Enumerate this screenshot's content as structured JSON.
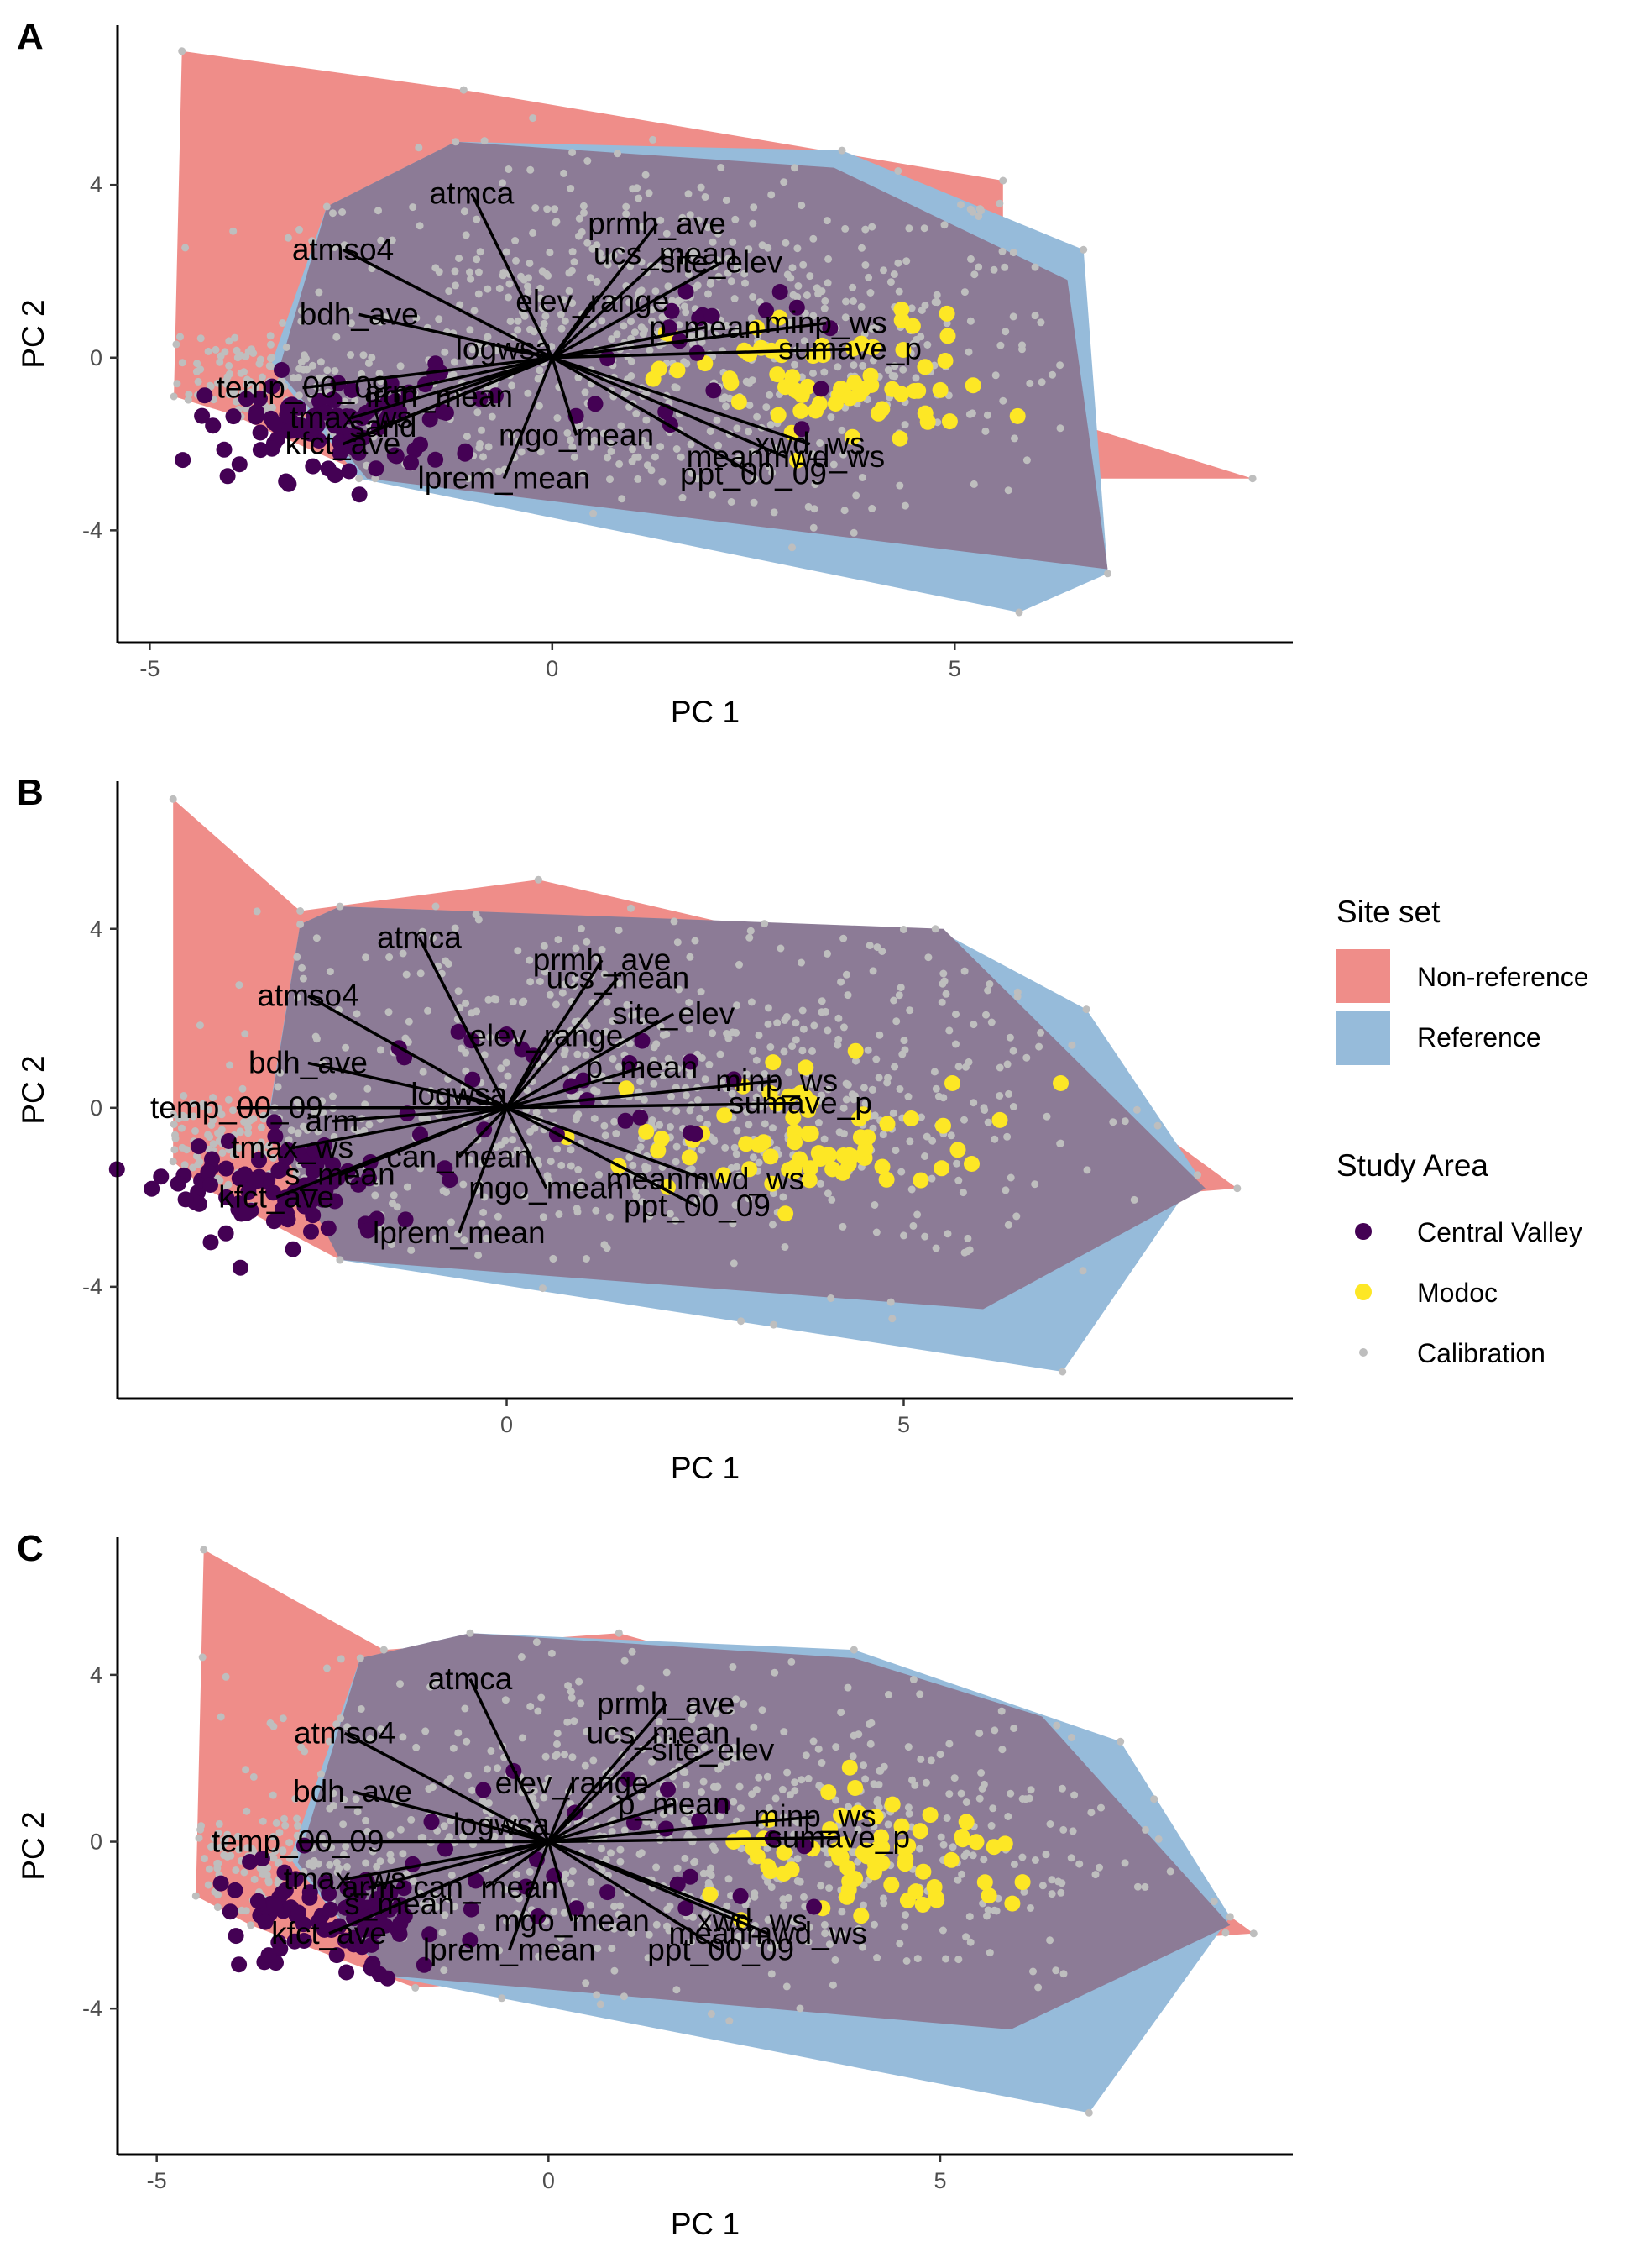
{
  "colors": {
    "nonref": "#ef8d89",
    "ref": "#96bbda",
    "overlap": "#8c7b96",
    "central": "#440154",
    "modoc": "#fde725",
    "calib": "#bebebe",
    "arrow": "#000000"
  },
  "legend": {
    "site_title": "Site set",
    "site_items": [
      {
        "label": "Non-reference",
        "color": "#ef8d89"
      },
      {
        "label": "Reference",
        "color": "#96bbda"
      }
    ],
    "study_title": "Study Area",
    "study_items": [
      {
        "label": "Central Valley",
        "color": "#440154"
      },
      {
        "label": "Modoc",
        "color": "#fde725"
      },
      {
        "label": "Calibration",
        "color": "#bebebe"
      }
    ]
  },
  "chart_data": [
    {
      "type": "scatter",
      "panel": "A",
      "xlabel": "PC 1",
      "ylabel": "PC 2",
      "xlim": [
        -5.4,
        9.2
      ],
      "ylim": [
        -6.6,
        7.7
      ],
      "xticks": [
        -5,
        0,
        5
      ],
      "yticks": [
        -4,
        0,
        4
      ],
      "hull_nonref": [
        [
          -4.6,
          7.1
        ],
        [
          -4.7,
          -0.9
        ],
        [
          -4.0,
          -1.3
        ],
        [
          -2.2,
          -2.8
        ],
        [
          8.7,
          -2.8
        ],
        [
          5.6,
          -1.0
        ],
        [
          5.6,
          4.1
        ],
        [
          -1.1,
          6.2
        ]
      ],
      "hull_ref": [
        [
          -2.8,
          3.5
        ],
        [
          -1.2,
          5.0
        ],
        [
          3.6,
          4.8
        ],
        [
          6.6,
          2.5
        ],
        [
          6.9,
          -5.0
        ],
        [
          5.8,
          -5.9
        ],
        [
          -2.4,
          -2.8
        ],
        [
          -3.5,
          -0.2
        ]
      ],
      "hull_overlap": [
        [
          -2.8,
          3.5
        ],
        [
          -1.2,
          5.0
        ],
        [
          3.5,
          4.4
        ],
        [
          6.4,
          1.8
        ],
        [
          6.9,
          -4.9
        ],
        [
          -2.3,
          -2.8
        ],
        [
          -3.4,
          -0.3
        ]
      ],
      "central_valley": {
        "cx": -2.8,
        "cy": -1.6,
        "sx": 0.8,
        "sy": 0.6,
        "n": 90
      },
      "modoc": {
        "cx": 3.5,
        "cy": -0.6,
        "sx": 1.0,
        "sy": 1.0,
        "n": 70
      },
      "calibration": {
        "cx": 1.4,
        "cy": 0.3,
        "sx": 2.6,
        "sy": 2.1,
        "n": 650
      },
      "loadings": [
        {
          "label": "atmca",
          "x": -1.0,
          "y": 3.8
        },
        {
          "label": "prmh_ave",
          "x": 1.3,
          "y": 3.1
        },
        {
          "label": "atmso4",
          "x": -2.6,
          "y": 2.5
        },
        {
          "label": "ucs_mean",
          "x": 1.4,
          "y": 2.4
        },
        {
          "label": "site_elev",
          "x": 2.1,
          "y": 2.2
        },
        {
          "label": "elev_range",
          "x": 0.5,
          "y": 1.3
        },
        {
          "label": "bdh_ave",
          "x": -2.4,
          "y": 1.0
        },
        {
          "label": "minp_ws",
          "x": 3.4,
          "y": 0.8
        },
        {
          "label": "p_mean",
          "x": 1.9,
          "y": 0.7
        },
        {
          "label": "logwsa",
          "x": -0.6,
          "y": 0.2
        },
        {
          "label": "sumave_p",
          "x": 3.7,
          "y": 0.2
        },
        {
          "label": "temp_00_09",
          "x": -3.1,
          "y": -0.7
        },
        {
          "label": "arm",
          "x": -2.0,
          "y": -0.8
        },
        {
          "label": "iron_mean",
          "x": -1.4,
          "y": -0.9
        },
        {
          "label": "tmax_ws",
          "x": -2.5,
          "y": -1.4
        },
        {
          "label": "sand",
          "x": -2.1,
          "y": -1.6
        },
        {
          "label": "kfct_ave",
          "x": -2.6,
          "y": -2.0
        },
        {
          "label": "mgo_mean",
          "x": 0.3,
          "y": -1.8
        },
        {
          "label": "xwd_ws",
          "x": 3.2,
          "y": -2.0
        },
        {
          "label": "meanmwd_ws",
          "x": 2.9,
          "y": -2.3
        },
        {
          "label": "ppt_00_09",
          "x": 2.5,
          "y": -2.7
        },
        {
          "label": "lprem_mean",
          "x": -0.6,
          "y": -2.8
        }
      ]
    },
    {
      "type": "scatter",
      "panel": "B",
      "xlabel": "PC 1",
      "ylabel": "PC 2",
      "xlim": [
        -4.9,
        9.9
      ],
      "ylim": [
        -6.5,
        7.3
      ],
      "xticks": [
        0,
        5
      ],
      "yticks": [
        -4,
        0,
        4
      ],
      "hull_nonref": [
        [
          -4.2,
          6.9
        ],
        [
          -4.2,
          -1.2
        ],
        [
          -3.8,
          -1.8
        ],
        [
          -2.1,
          -3.4
        ],
        [
          9.2,
          -1.8
        ],
        [
          5.5,
          3.0
        ],
        [
          0.4,
          5.1
        ],
        [
          -2.6,
          4.4
        ]
      ],
      "hull_ref": [
        [
          -2.6,
          4.1
        ],
        [
          -2.1,
          4.5
        ],
        [
          5.4,
          4.0
        ],
        [
          7.3,
          2.2
        ],
        [
          8.7,
          -1.5
        ],
        [
          7.0,
          -5.9
        ],
        [
          -2.1,
          -3.4
        ],
        [
          -3.0,
          -0.2
        ]
      ],
      "hull_overlap": [
        [
          -2.6,
          4.1
        ],
        [
          -2.1,
          4.5
        ],
        [
          5.5,
          4.0
        ],
        [
          8.8,
          -1.8
        ],
        [
          6.0,
          -4.5
        ],
        [
          -2.1,
          -3.4
        ],
        [
          -3.0,
          -0.3
        ]
      ],
      "central_valley": {
        "cx": -2.8,
        "cy": -1.9,
        "sx": 0.7,
        "sy": 0.6,
        "n": 90
      },
      "modoc": {
        "cx": 4.0,
        "cy": -0.7,
        "sx": 1.2,
        "sy": 0.9,
        "n": 70
      },
      "calibration": {
        "cx": 1.8,
        "cy": 0.2,
        "sx": 2.9,
        "sy": 1.9,
        "n": 650
      },
      "loadings": [
        {
          "label": "atmca",
          "x": -1.1,
          "y": 3.8
        },
        {
          "label": "prmh_ave",
          "x": 1.2,
          "y": 3.3
        },
        {
          "label": "atmso4",
          "x": -2.5,
          "y": 2.5
        },
        {
          "label": "ucs_mean",
          "x": 1.4,
          "y": 2.9
        },
        {
          "label": "site_elev",
          "x": 2.1,
          "y": 2.1
        },
        {
          "label": "elev_range",
          "x": 0.5,
          "y": 1.6
        },
        {
          "label": "bdh_ave",
          "x": -2.5,
          "y": 1.0
        },
        {
          "label": "p_mean",
          "x": 1.7,
          "y": 0.9
        },
        {
          "label": "minp_ws",
          "x": 3.4,
          "y": 0.6
        },
        {
          "label": "logwsa",
          "x": -0.6,
          "y": 0.3
        },
        {
          "label": "sumave_p",
          "x": 3.7,
          "y": 0.1
        },
        {
          "label": "temp_00_09",
          "x": -3.4,
          "y": 0.0
        },
        {
          "label": "arm",
          "x": -2.2,
          "y": -0.3
        },
        {
          "label": "tmax_ws",
          "x": -2.7,
          "y": -0.9
        },
        {
          "label": "can_mean",
          "x": -0.6,
          "y": -1.1
        },
        {
          "label": "s_mean",
          "x": -2.1,
          "y": -1.5
        },
        {
          "label": "kfct_ave",
          "x": -2.9,
          "y": -2.0
        },
        {
          "label": "mgo_mean",
          "x": 0.5,
          "y": -1.8
        },
        {
          "label": "meanmwd_ws",
          "x": 2.5,
          "y": -1.6
        },
        {
          "label": "ppt_00_09",
          "x": 2.4,
          "y": -2.2
        },
        {
          "label": "lprem_mean",
          "x": -0.6,
          "y": -2.8
        }
      ]
    },
    {
      "type": "scatter",
      "panel": "C",
      "xlabel": "PC 1",
      "ylabel": "PC 2",
      "xlim": [
        -5.5,
        9.5
      ],
      "ylim": [
        -7.5,
        7.3
      ],
      "xticks": [
        -5,
        0,
        5
      ],
      "yticks": [
        -4,
        0,
        4
      ],
      "hull_nonref": [
        [
          -4.4,
          7.0
        ],
        [
          -4.5,
          -1.3
        ],
        [
          -3.8,
          -2.0
        ],
        [
          -1.7,
          -3.5
        ],
        [
          9.0,
          -2.2
        ],
        [
          5.5,
          2.6
        ],
        [
          0.9,
          5.0
        ],
        [
          -2.1,
          4.6
        ]
      ],
      "hull_ref": [
        [
          -2.4,
          4.4
        ],
        [
          -1.0,
          5.0
        ],
        [
          3.9,
          4.6
        ],
        [
          7.3,
          2.4
        ],
        [
          8.7,
          -1.8
        ],
        [
          6.9,
          -6.5
        ],
        [
          -2.1,
          -3.2
        ],
        [
          -3.3,
          -0.4
        ]
      ],
      "hull_overlap": [
        [
          -2.4,
          4.4
        ],
        [
          -1.0,
          5.0
        ],
        [
          3.9,
          4.4
        ],
        [
          6.3,
          3.0
        ],
        [
          8.7,
          -2.0
        ],
        [
          5.9,
          -4.5
        ],
        [
          -2.1,
          -3.2
        ],
        [
          -3.2,
          -0.5
        ]
      ],
      "central_valley": {
        "cx": -2.8,
        "cy": -1.9,
        "sx": 0.8,
        "sy": 0.7,
        "n": 90
      },
      "modoc": {
        "cx": 4.3,
        "cy": -0.6,
        "sx": 1.1,
        "sy": 0.9,
        "n": 70
      },
      "calibration": {
        "cx": 1.6,
        "cy": 0.2,
        "sx": 2.9,
        "sy": 2.0,
        "n": 650
      },
      "loadings": [
        {
          "label": "atmca",
          "x": -1.0,
          "y": 3.9
        },
        {
          "label": "prmh_ave",
          "x": 1.5,
          "y": 3.3
        },
        {
          "label": "atmso4",
          "x": -2.6,
          "y": 2.6
        },
        {
          "label": "ucs_mean",
          "x": 1.4,
          "y": 2.6
        },
        {
          "label": "site_elev",
          "x": 2.1,
          "y": 2.2
        },
        {
          "label": "elev_range",
          "x": 0.3,
          "y": 1.4
        },
        {
          "label": "bdh_ave",
          "x": -2.5,
          "y": 1.2
        },
        {
          "label": "p_mean",
          "x": 1.6,
          "y": 0.9
        },
        {
          "label": "minp_ws",
          "x": 3.4,
          "y": 0.6
        },
        {
          "label": "logwsa",
          "x": -0.6,
          "y": 0.4
        },
        {
          "label": "sumave_p",
          "x": 3.7,
          "y": 0.1
        },
        {
          "label": "temp_00_09",
          "x": -3.2,
          "y": 0.0
        },
        {
          "label": "tmax_ws",
          "x": -2.6,
          "y": -0.9
        },
        {
          "label": "can_mean",
          "x": -0.8,
          "y": -1.1
        },
        {
          "label": "arm",
          "x": -2.3,
          "y": -1.1
        },
        {
          "label": "s_mean",
          "x": -1.9,
          "y": -1.5
        },
        {
          "label": "kfct_ave",
          "x": -2.8,
          "y": -2.2
        },
        {
          "label": "mgo_mean",
          "x": 0.3,
          "y": -1.9
        },
        {
          "label": "xwd_ws",
          "x": 2.6,
          "y": -1.9
        },
        {
          "label": "meanmwd_ws",
          "x": 2.8,
          "y": -2.2
        },
        {
          "label": "ppt_00_09",
          "x": 2.2,
          "y": -2.6
        },
        {
          "label": "lprem_mean",
          "x": -0.5,
          "y": -2.6
        }
      ]
    }
  ]
}
